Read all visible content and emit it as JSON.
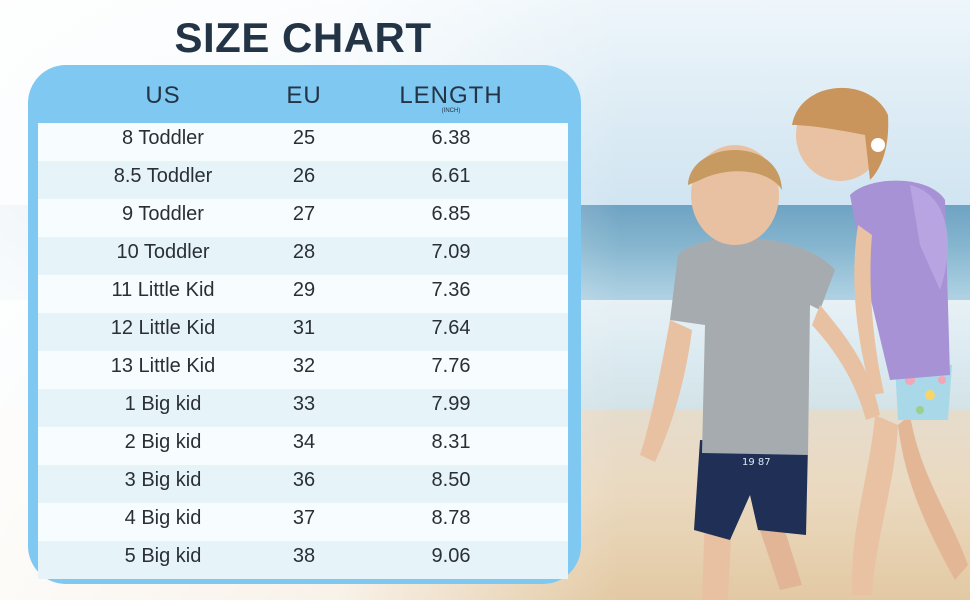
{
  "title": "SIZE CHART",
  "headers": {
    "us": "US",
    "eu": "EU",
    "length": "LENGTH",
    "length_unit": "(INCH)"
  },
  "rows": [
    {
      "us": "8 Toddler",
      "eu": "25",
      "length": "6.38"
    },
    {
      "us": "8.5 Toddler",
      "eu": "26",
      "length": "6.61"
    },
    {
      "us": "9 Toddler",
      "eu": "27",
      "length": "6.85"
    },
    {
      "us": "10 Toddler",
      "eu": "28",
      "length": "7.09"
    },
    {
      "us": "11 Little Kid",
      "eu": "29",
      "length": "7.36"
    },
    {
      "us": "12 Little Kid",
      "eu": "31",
      "length": "7.64"
    },
    {
      "us": "13 Little Kid",
      "eu": "32",
      "length": "7.76"
    },
    {
      "us": "1 Big kid",
      "eu": "33",
      "length": "7.99"
    },
    {
      "us": "2 Big kid",
      "eu": "34",
      "length": "8.31"
    },
    {
      "us": "3 Big kid",
      "eu": "36",
      "length": "8.50"
    },
    {
      "us": "4 Big kid",
      "eu": "37",
      "length": "8.78"
    },
    {
      "us": "5 Big kid",
      "eu": "38",
      "length": "9.06"
    }
  ],
  "shorts_print": "19 87",
  "colors": {
    "frame": "#7fc8f1",
    "title": "#243447",
    "row_alt": "#e6f4f9"
  }
}
